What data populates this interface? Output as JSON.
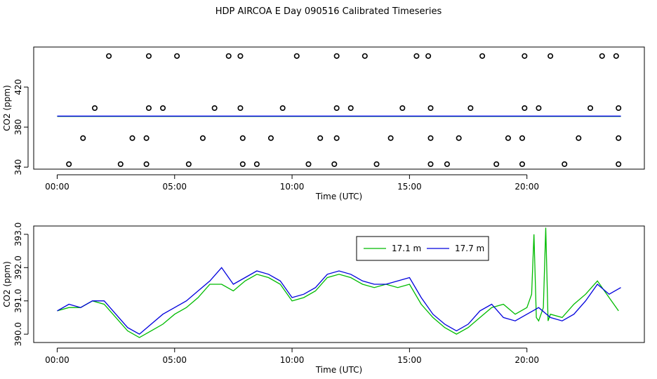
{
  "title": "HDP AIRCOA E  Day 090516  Calibrated Timeseries",
  "chart_data": [
    {
      "type": "scatter",
      "xlabel": "Time (UTC)",
      "ylabel": "CO2 (ppm)",
      "xlim": [
        -1.0,
        25.0
      ],
      "ylim": [
        338,
        460
      ],
      "xticks": [
        0,
        5,
        10,
        15,
        20
      ],
      "xtick_labels": [
        "00:00",
        "05:00",
        "10:00",
        "15:00",
        "20:00"
      ],
      "yticks": [
        340,
        380,
        420
      ],
      "ytick_labels": [
        "340",
        "380",
        "420"
      ],
      "scatter_points": [
        [
          0.5,
          343
        ],
        [
          2.7,
          343
        ],
        [
          3.8,
          343
        ],
        [
          5.6,
          343
        ],
        [
          7.9,
          343
        ],
        [
          8.5,
          343
        ],
        [
          10.7,
          343
        ],
        [
          11.8,
          343
        ],
        [
          13.6,
          343
        ],
        [
          15.9,
          343
        ],
        [
          16.6,
          343
        ],
        [
          18.7,
          343
        ],
        [
          19.8,
          343
        ],
        [
          21.6,
          343
        ],
        [
          23.9,
          343
        ],
        [
          1.1,
          369
        ],
        [
          3.2,
          369
        ],
        [
          3.8,
          369
        ],
        [
          6.2,
          369
        ],
        [
          7.9,
          369
        ],
        [
          9.1,
          369
        ],
        [
          11.2,
          369
        ],
        [
          11.9,
          369
        ],
        [
          14.2,
          369
        ],
        [
          15.9,
          369
        ],
        [
          17.1,
          369
        ],
        [
          19.2,
          369
        ],
        [
          19.8,
          369
        ],
        [
          22.2,
          369
        ],
        [
          23.9,
          369
        ],
        [
          1.6,
          399
        ],
        [
          3.9,
          399
        ],
        [
          4.5,
          399
        ],
        [
          6.7,
          399
        ],
        [
          7.8,
          399
        ],
        [
          9.6,
          399
        ],
        [
          11.9,
          399
        ],
        [
          12.5,
          399
        ],
        [
          14.7,
          399
        ],
        [
          15.9,
          399
        ],
        [
          17.6,
          399
        ],
        [
          19.9,
          399
        ],
        [
          20.5,
          399
        ],
        [
          22.7,
          399
        ],
        [
          23.9,
          399
        ],
        [
          2.2,
          451
        ],
        [
          3.9,
          451
        ],
        [
          5.1,
          451
        ],
        [
          7.3,
          451
        ],
        [
          7.8,
          451
        ],
        [
          10.2,
          451
        ],
        [
          11.9,
          451
        ],
        [
          13.1,
          451
        ],
        [
          15.3,
          451
        ],
        [
          15.8,
          451
        ],
        [
          18.1,
          451
        ],
        [
          19.9,
          451
        ],
        [
          21.0,
          451
        ],
        [
          23.2,
          451
        ],
        [
          23.8,
          451
        ]
      ],
      "series": [
        {
          "name": "",
          "color": "#00aa00",
          "values_ppm_approx": 391.0
        },
        {
          "name": "",
          "color": "#0000ee",
          "values_ppm_approx": 391.0
        }
      ],
      "grid": false
    },
    {
      "type": "line",
      "xlabel": "Time (UTC)",
      "ylabel": "CO2 (ppm)",
      "xlim": [
        -1.0,
        25.0
      ],
      "ylim": [
        389.75,
        393.25
      ],
      "xticks": [
        0,
        5,
        10,
        15,
        20
      ],
      "xtick_labels": [
        "00:00",
        "05:00",
        "10:00",
        "15:00",
        "20:00"
      ],
      "yticks": [
        390.0,
        391.0,
        392.0,
        393.0
      ],
      "ytick_labels": [
        "390.0",
        "391.0",
        "392.0",
        "393.0"
      ],
      "legend_position": "top-right",
      "grid": false,
      "series": [
        {
          "name": "17.1 m",
          "color": "#00bb00",
          "x": [
            0.0,
            0.5,
            1.0,
            1.5,
            2.0,
            2.5,
            3.0,
            3.5,
            4.0,
            4.5,
            5.0,
            5.5,
            6.0,
            6.5,
            7.0,
            7.5,
            8.0,
            8.5,
            9.0,
            9.5,
            10.0,
            10.5,
            11.0,
            11.5,
            12.0,
            12.5,
            13.0,
            13.5,
            14.0,
            14.5,
            15.0,
            15.5,
            16.0,
            16.5,
            17.0,
            17.5,
            18.0,
            18.5,
            19.0,
            19.5,
            20.0,
            20.2,
            20.3,
            20.4,
            20.5,
            20.7,
            20.8,
            20.9,
            21.0,
            21.5,
            22.0,
            22.5,
            23.0,
            23.5,
            23.9
          ],
          "values": [
            390.7,
            390.8,
            390.8,
            391.0,
            390.9,
            390.5,
            390.1,
            389.9,
            390.1,
            390.3,
            390.6,
            390.8,
            391.1,
            391.5,
            391.5,
            391.3,
            391.6,
            391.8,
            391.7,
            391.5,
            391.0,
            391.1,
            391.3,
            391.7,
            391.8,
            391.7,
            391.5,
            391.4,
            391.5,
            391.4,
            391.5,
            390.9,
            390.5,
            390.2,
            390.0,
            390.2,
            390.5,
            390.8,
            390.9,
            390.6,
            390.8,
            391.2,
            393.0,
            390.5,
            390.4,
            390.8,
            393.2,
            390.4,
            390.6,
            390.5,
            390.9,
            391.2,
            391.6,
            391.1,
            390.7
          ]
        },
        {
          "name": "17.7 m",
          "color": "#0000dd",
          "x": [
            0.0,
            0.5,
            1.0,
            1.5,
            2.0,
            2.5,
            3.0,
            3.5,
            4.0,
            4.5,
            5.0,
            5.5,
            6.0,
            6.5,
            7.0,
            7.5,
            8.0,
            8.5,
            9.0,
            9.5,
            10.0,
            10.5,
            11.0,
            11.5,
            12.0,
            12.5,
            13.0,
            13.5,
            14.0,
            14.5,
            15.0,
            15.5,
            16.0,
            16.5,
            17.0,
            17.5,
            18.0,
            18.5,
            19.0,
            19.5,
            20.0,
            20.5,
            21.0,
            21.5,
            22.0,
            22.5,
            23.0,
            23.5,
            24.0
          ],
          "values": [
            390.7,
            390.9,
            390.8,
            391.0,
            391.0,
            390.6,
            390.2,
            390.0,
            390.3,
            390.6,
            390.8,
            391.0,
            391.3,
            391.6,
            392.0,
            391.5,
            391.7,
            391.9,
            391.8,
            391.6,
            391.1,
            391.2,
            391.4,
            391.8,
            391.9,
            391.8,
            391.6,
            391.5,
            391.5,
            391.6,
            391.7,
            391.1,
            390.6,
            390.3,
            390.1,
            390.3,
            390.7,
            390.9,
            390.5,
            390.4,
            390.6,
            390.8,
            390.5,
            390.4,
            390.6,
            391.0,
            391.5,
            391.2,
            391.4
          ]
        }
      ]
    }
  ]
}
